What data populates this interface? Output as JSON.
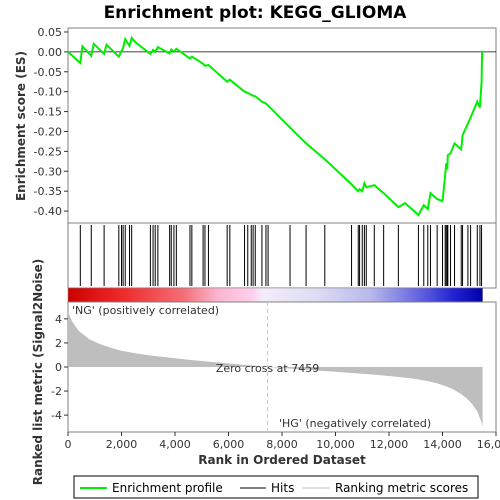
{
  "chart_data": {
    "type": "line",
    "title": "Enrichment plot: KEGG_GLIOMA",
    "xlabel": "Rank in Ordered Dataset",
    "ylabel_top": "Enrichment score (ES)",
    "ylabel_bottom": "Ranked list metric (Signal2Noise)",
    "xlim": [
      0,
      16000
    ],
    "x_ticks": [
      "0",
      "2,000",
      "4,000",
      "6,000",
      "8,000",
      "10,000",
      "12,000",
      "14,000",
      "16,000"
    ],
    "x_tick_values": [
      0,
      2000,
      4000,
      6000,
      8000,
      10000,
      12000,
      14000,
      16000
    ],
    "es_ylim": [
      -0.43,
      0.06
    ],
    "es_y_ticks": [
      "0.05",
      "0.00",
      "-0.05",
      "-0.10",
      "-0.15",
      "-0.20",
      "-0.25",
      "-0.30",
      "-0.35",
      "-0.40"
    ],
    "es_y_tick_values": [
      0.05,
      0.0,
      -0.05,
      -0.1,
      -0.15,
      -0.2,
      -0.25,
      -0.3,
      -0.35,
      -0.4
    ],
    "metric_ylim": [
      -5.4,
      5.4
    ],
    "metric_y_ticks": [
      "4",
      "2",
      "0",
      "-2",
      "-4"
    ],
    "metric_y_tick_values": [
      4,
      2,
      0,
      -2,
      -4
    ],
    "series": [
      {
        "name": "Enrichment profile",
        "color": "#00ee00",
        "x": [
          0,
          460,
          540,
          870,
          960,
          1350,
          1440,
          1900,
          2000,
          2060,
          2140,
          2300,
          2380,
          2500,
          3080,
          3180,
          3260,
          3360,
          3800,
          3860,
          3960,
          4050,
          4560,
          4630,
          5050,
          5120,
          5250,
          5950,
          6050,
          6600,
          6720,
          6850,
          6920,
          7000,
          7250,
          7400,
          7480,
          8300,
          8900,
          9600,
          10600,
          10850,
          10900,
          11000,
          11080,
          11150,
          11450,
          11800,
          12350,
          12600,
          13100,
          13300,
          13450,
          13550,
          13800,
          14000,
          14100,
          14140,
          14180,
          14200,
          14300,
          14450,
          14700,
          14750,
          14950,
          15050,
          15300,
          15400,
          15460
        ],
        "values": [
          0.0,
          -0.028,
          0.014,
          -0.01,
          0.02,
          -0.005,
          0.018,
          -0.012,
          0.002,
          0.01,
          0.032,
          0.015,
          0.035,
          0.025,
          -0.005,
          0.005,
          0.0,
          0.012,
          -0.004,
          0.006,
          0.0,
          0.008,
          -0.017,
          -0.012,
          -0.03,
          -0.035,
          -0.033,
          -0.075,
          -0.07,
          -0.1,
          -0.103,
          -0.108,
          -0.11,
          -0.112,
          -0.125,
          -0.13,
          -0.135,
          -0.19,
          -0.23,
          -0.27,
          -0.333,
          -0.35,
          -0.345,
          -0.35,
          -0.33,
          -0.34,
          -0.335,
          -0.355,
          -0.39,
          -0.38,
          -0.41,
          -0.385,
          -0.395,
          -0.355,
          -0.37,
          -0.375,
          -0.31,
          -0.28,
          -0.295,
          -0.26,
          -0.255,
          -0.23,
          -0.245,
          -0.21,
          -0.18,
          -0.165,
          -0.125,
          -0.14,
          -0.075
        ]
      }
    ],
    "es_endpoint": {
      "x": 15480,
      "value": 0.003
    },
    "hits": [
      460,
      870,
      1350,
      1900,
      2000,
      2060,
      2140,
      2300,
      2380,
      3080,
      3180,
      3260,
      3360,
      3800,
      3860,
      3960,
      4050,
      4560,
      4630,
      5050,
      5120,
      5250,
      5950,
      6050,
      6600,
      6720,
      6850,
      6920,
      7000,
      7250,
      7400,
      7480,
      8300,
      8900,
      9600,
      10600,
      10850,
      10900,
      11000,
      11080,
      11150,
      11450,
      11800,
      12350,
      13100,
      13300,
      13450,
      13550,
      13800,
      14000,
      14100,
      14140,
      14180,
      14200,
      14300,
      14450,
      14700,
      14750,
      14950,
      15050,
      15300,
      15400,
      15460
    ],
    "metric_profile": {
      "x": [
        0,
        150,
        400,
        800,
        1200,
        1600,
        2000,
        2500,
        3000,
        3500,
        4000,
        4500,
        5000,
        5500,
        6000,
        6500,
        7000,
        7459,
        8000,
        8500,
        9000,
        9500,
        10000,
        10500,
        11000,
        11500,
        12000,
        12500,
        13000,
        13500,
        13800,
        14100,
        14400,
        14700,
        14900,
        15100,
        15300,
        15450,
        15500
      ],
      "values": [
        4.6,
        3.8,
        3.0,
        2.3,
        1.9,
        1.6,
        1.35,
        1.15,
        0.98,
        0.85,
        0.72,
        0.61,
        0.5,
        0.4,
        0.3,
        0.2,
        0.1,
        0.0,
        -0.08,
        -0.16,
        -0.24,
        -0.32,
        -0.4,
        -0.48,
        -0.56,
        -0.65,
        -0.75,
        -0.86,
        -1.0,
        -1.2,
        -1.36,
        -1.58,
        -1.85,
        -2.25,
        -2.6,
        -3.05,
        -3.7,
        -4.55,
        -4.9
      ]
    },
    "zero_cross_x": 7459,
    "zero_cross_label": "Zero cross at 7459",
    "pos_label": "'NG' (positively correlated)",
    "neg_label": "'HG' (negatively correlated)",
    "legend": [
      {
        "label": "Enrichment profile",
        "color": "#00ee00"
      },
      {
        "label": "Hits",
        "color": "#000000"
      },
      {
        "label": "Ranking metric scores",
        "color": "#c0c0c0"
      }
    ],
    "colors": {
      "es_line": "#00ee00",
      "hit": "#000000",
      "metric_fill": "#bebebe",
      "pos_label": "#ee0000",
      "neg_label": "#0000ee",
      "zero_line": "#c8c8c8"
    }
  }
}
